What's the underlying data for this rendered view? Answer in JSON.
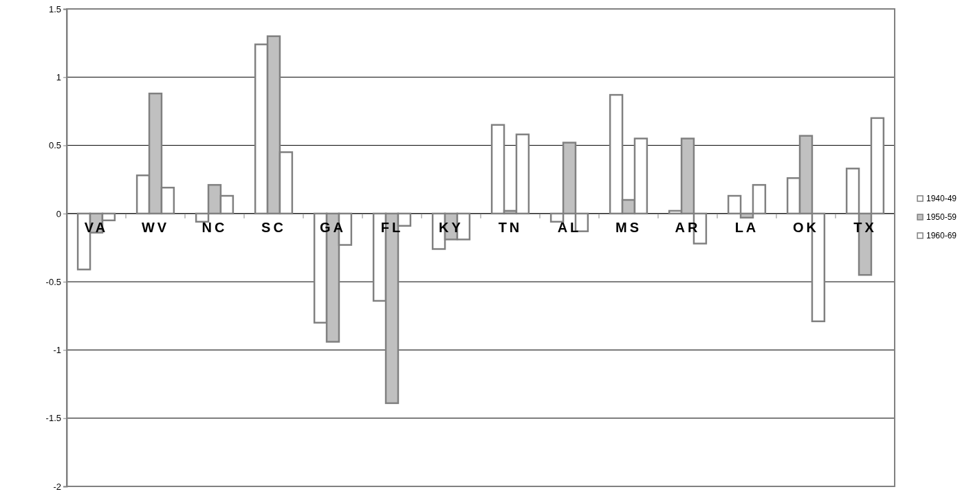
{
  "chart_data": {
    "type": "bar",
    "categories": [
      "VA",
      "WV",
      "NC",
      "SC",
      "GA",
      "FL",
      "KY",
      "TN",
      "AL",
      "MS",
      "AR",
      "LA",
      "OK",
      "TX"
    ],
    "series": [
      {
        "name": "1940-49",
        "color": "#ffffff",
        "values": [
          -0.41,
          0.28,
          -0.06,
          1.24,
          -0.8,
          -0.64,
          -0.26,
          0.65,
          -0.06,
          0.87,
          0.02,
          0.13,
          0.26,
          0.33
        ]
      },
      {
        "name": "1950-59",
        "color": "#c0c0c0",
        "values": [
          -0.14,
          0.88,
          0.21,
          1.3,
          -0.94,
          -1.39,
          -0.19,
          0.02,
          0.52,
          0.1,
          0.55,
          -0.03,
          0.57,
          -0.45
        ]
      },
      {
        "name": "1960-69",
        "color": "#ffffff",
        "values": [
          -0.05,
          0.19,
          0.13,
          0.45,
          -0.23,
          -0.09,
          -0.19,
          0.58,
          -0.13,
          0.55,
          -0.22,
          0.21,
          -0.79,
          0.7
        ]
      }
    ],
    "ylim": [
      -2,
      1.5
    ],
    "yticks": [
      -2,
      -1.5,
      -1,
      -0.5,
      0,
      0.5,
      1,
      1.5
    ],
    "grid": "y",
    "legend": "right"
  }
}
